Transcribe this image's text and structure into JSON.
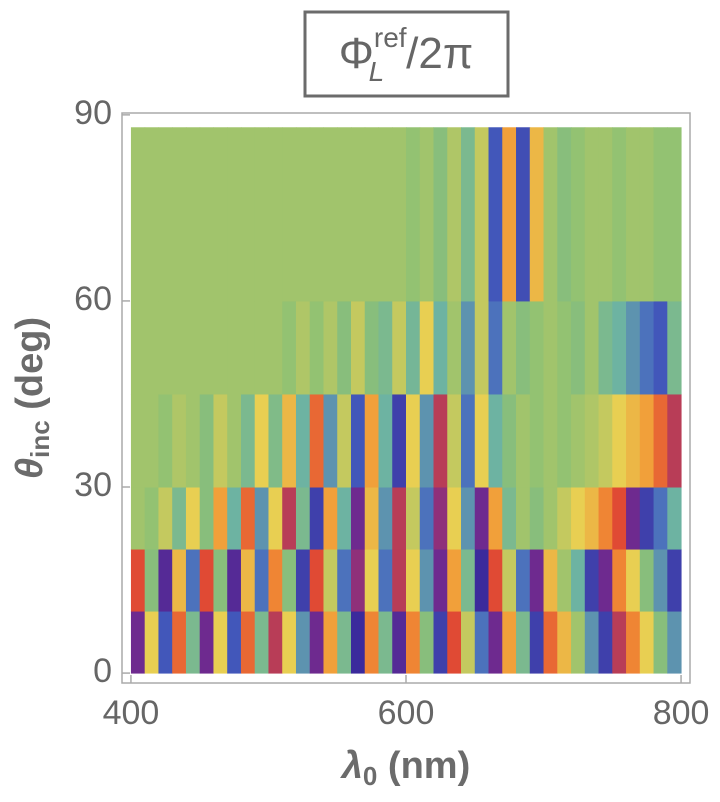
{
  "chart_data": {
    "type": "heatmap",
    "title": {
      "base": "Φ",
      "sub": "L",
      "sup": "ref",
      "rest": "/2π"
    },
    "x_label": {
      "symbol": "λ",
      "sub": "0",
      "rest": " (nm)"
    },
    "y_label": {
      "symbol": "θ",
      "sub": "inc",
      "rest": " (deg)"
    },
    "xlim": [
      393.5,
      806.5
    ],
    "ylim": [
      -1.6,
      90.3
    ],
    "xticks": [
      400,
      600,
      800
    ],
    "yticks": [
      0,
      30,
      60,
      90
    ],
    "xbins": [
      400,
      410,
      420,
      430,
      440,
      450,
      460,
      470,
      480,
      490,
      500,
      510,
      520,
      530,
      540,
      550,
      560,
      570,
      580,
      590,
      600,
      610,
      620,
      630,
      640,
      650,
      660,
      670,
      680,
      690,
      700,
      710,
      720,
      730,
      740,
      750,
      760,
      770,
      780,
      790,
      800
    ],
    "ybins": [
      0,
      10,
      20,
      30,
      45,
      60,
      88
    ],
    "colormap": [
      "#3b2a9c",
      "#7b2a8c",
      "#e04a34",
      "#f39434",
      "#e8cf52",
      "#8fc173",
      "#6db3a2",
      "#4462c2",
      "#3b2a9c"
    ],
    "z": [
      [
        0.1,
        0.5,
        0.9,
        0.3,
        0.7,
        0.1,
        0.5,
        0.9,
        0.3,
        0.7,
        0.2,
        0.5,
        0.8,
        0.1,
        0.4,
        0.7,
        0.0,
        0.35,
        0.7,
        0.05,
        0.35,
        0.65,
        0.95,
        0.25,
        0.55,
        0.85,
        0.1,
        0.4,
        0.7,
        0.95,
        0.3,
        0.45,
        0.6,
        0.8,
        0.95,
        0.2,
        0.35,
        0.5,
        0.65,
        0.8
      ],
      [
        0.25,
        0.65,
        0.05,
        0.45,
        0.85,
        0.25,
        0.65,
        0.05,
        0.45,
        0.85,
        0.35,
        0.65,
        0.95,
        0.25,
        0.55,
        0.85,
        0.15,
        0.5,
        0.85,
        0.2,
        0.5,
        0.8,
        0.1,
        0.4,
        0.7,
        0.0,
        0.25,
        0.55,
        0.85,
        0.1,
        0.45,
        0.6,
        0.75,
        0.95,
        0.1,
        0.35,
        0.5,
        0.65,
        0.8,
        0.95
      ],
      [
        0.6,
        0.62,
        0.55,
        0.7,
        0.5,
        0.65,
        0.4,
        0.75,
        0.3,
        0.8,
        0.5,
        0.2,
        0.7,
        0.95,
        0.4,
        0.75,
        0.1,
        0.45,
        0.8,
        0.2,
        0.55,
        0.85,
        0.15,
        0.5,
        0.8,
        0.1,
        0.4,
        0.7,
        0.6,
        0.65,
        0.6,
        0.55,
        0.5,
        0.45,
        0.35,
        0.25,
        0.1,
        0.95,
        0.85,
        0.75
      ],
      [
        0.6,
        0.6,
        0.62,
        0.58,
        0.6,
        0.65,
        0.55,
        0.6,
        0.7,
        0.5,
        0.68,
        0.45,
        0.75,
        0.3,
        0.8,
        0.55,
        0.9,
        0.4,
        0.75,
        0.95,
        0.5,
        0.8,
        0.2,
        0.55,
        0.85,
        0.5,
        0.75,
        0.65,
        0.6,
        0.62,
        0.6,
        0.62,
        0.6,
        0.58,
        0.55,
        0.5,
        0.45,
        0.4,
        0.3,
        0.2
      ],
      [
        0.6,
        0.6,
        0.6,
        0.6,
        0.6,
        0.6,
        0.6,
        0.6,
        0.6,
        0.6,
        0.6,
        0.62,
        0.58,
        0.62,
        0.58,
        0.65,
        0.55,
        0.65,
        0.7,
        0.55,
        0.72,
        0.5,
        0.75,
        0.6,
        0.8,
        0.55,
        0.85,
        0.6,
        0.65,
        0.62,
        0.6,
        0.62,
        0.65,
        0.6,
        0.7,
        0.75,
        0.8,
        0.85,
        0.9,
        0.7
      ],
      [
        0.6,
        0.6,
        0.6,
        0.6,
        0.6,
        0.6,
        0.6,
        0.6,
        0.6,
        0.6,
        0.6,
        0.6,
        0.6,
        0.6,
        0.6,
        0.6,
        0.6,
        0.6,
        0.6,
        0.6,
        0.62,
        0.6,
        0.65,
        0.58,
        0.7,
        0.55,
        0.9,
        0.4,
        0.92,
        0.45,
        0.6,
        0.65,
        0.62,
        0.6,
        0.6,
        0.62,
        0.6,
        0.6,
        0.62,
        0.62
      ]
    ]
  }
}
